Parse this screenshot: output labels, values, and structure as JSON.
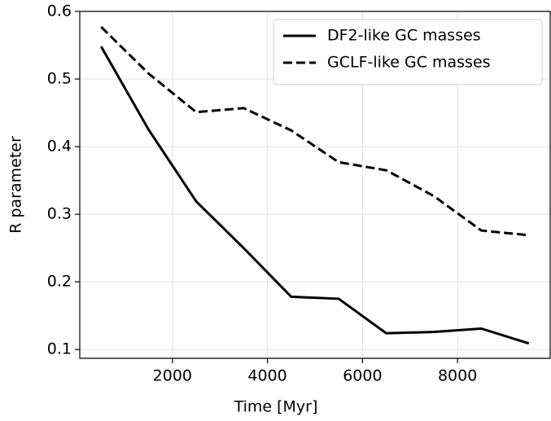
{
  "chart_data": {
    "type": "line",
    "xlabel": "Time [Myr]",
    "ylabel": "R parameter",
    "x": [
      500,
      1500,
      2500,
      3500,
      4500,
      5500,
      6500,
      7500,
      8500,
      9500
    ],
    "series": [
      {
        "name": "DF2-like GC masses",
        "color": "#000000",
        "linestyle": "solid",
        "values": [
          0.548,
          0.425,
          0.319,
          0.25,
          0.178,
          0.175,
          0.124,
          0.126,
          0.131,
          0.109
        ]
      },
      {
        "name": "GCLF-like GC masses",
        "color": "#000000",
        "linestyle": "dashed",
        "values": [
          0.577,
          0.508,
          0.451,
          0.457,
          0.424,
          0.377,
          0.365,
          0.327,
          0.276,
          0.269
        ]
      }
    ],
    "xlim": [
      50,
      9950
    ],
    "ylim": [
      0.087,
      0.6
    ],
    "xticks": [
      2000,
      4000,
      6000,
      8000
    ],
    "yticks": [
      0.1,
      0.2,
      0.3,
      0.4,
      0.5,
      0.6
    ],
    "grid": true,
    "legend": "upper right"
  }
}
